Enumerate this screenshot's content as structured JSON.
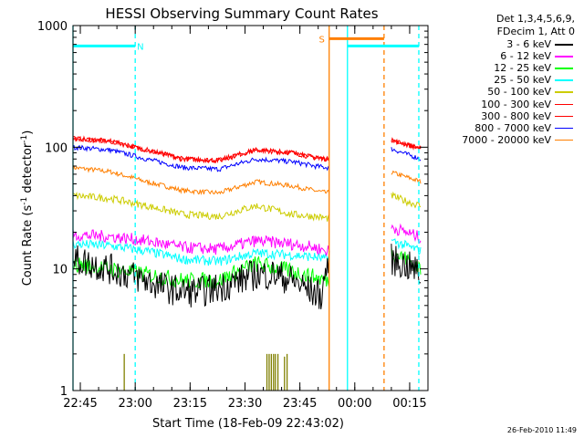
{
  "chart_data": {
    "type": "line",
    "title": "HESSI Observing Summary Count Rates",
    "xlabel": "Start Time (18-Feb-09 22:43:02)",
    "ylabel": "Count Rate (s",
    "ylabel_sup1": "-1",
    "ylabel_mid": " detector",
    "ylabel_sup2": "-1",
    "ylabel_end": ")",
    "y_scale": "log",
    "ylim": [
      1,
      1000
    ],
    "y_ticks": [
      {
        "value": 1,
        "label": "1"
      },
      {
        "value": 10,
        "label": "10"
      },
      {
        "value": 100,
        "label": "100"
      },
      {
        "value": 1000,
        "label": "1000"
      }
    ],
    "x_unit": "minutes after 22:43:02",
    "xlim": [
      0,
      97
    ],
    "x_ticks": [
      {
        "value": 2,
        "label": "22:45"
      },
      {
        "value": 17,
        "label": "23:00"
      },
      {
        "value": 32,
        "label": "23:15"
      },
      {
        "value": 47,
        "label": "23:30"
      },
      {
        "value": 62,
        "label": "23:45"
      },
      {
        "value": 77,
        "label": "00:00"
      },
      {
        "value": 92,
        "label": "00:15"
      }
    ],
    "gaps": [
      [
        70,
        87
      ]
    ],
    "series": [
      {
        "name": "3 - 6 keV",
        "color": "#000000",
        "noise": 0.13,
        "x": [
          0,
          5,
          10,
          15,
          20,
          25,
          30,
          35,
          40,
          45,
          50,
          55,
          60,
          65,
          68,
          69.5,
          87,
          90,
          93,
          95
        ],
        "y": [
          12,
          11,
          10,
          9,
          8,
          7,
          6.5,
          6.5,
          7,
          8,
          9,
          9,
          8,
          6.5,
          6,
          11,
          12,
          11,
          10,
          9
        ]
      },
      {
        "name": "6 - 12 keV",
        "color": "#ff00ff",
        "noise": 0.05,
        "x": [
          0,
          10,
          20,
          30,
          40,
          50,
          60,
          66,
          69.5,
          87,
          91,
          95
        ],
        "y": [
          19,
          18.5,
          17,
          15,
          14.5,
          17,
          16,
          15,
          14,
          22,
          20,
          18
        ]
      },
      {
        "name": "12 - 25 keV",
        "color": "#00ff00",
        "noise": 0.07,
        "x": [
          0,
          10,
          20,
          30,
          40,
          50,
          60,
          66,
          69.5,
          87,
          91,
          95
        ],
        "y": [
          11,
          10,
          9,
          8,
          8,
          11,
          9.5,
          8.5,
          8,
          14,
          12,
          10
        ]
      },
      {
        "name": "25 - 50 keV",
        "color": "#00ffff",
        "noise": 0.04,
        "x": [
          0,
          10,
          20,
          30,
          40,
          50,
          60,
          66,
          69.5,
          87,
          91,
          95
        ],
        "y": [
          16,
          15.5,
          14,
          12,
          11.5,
          13.5,
          13,
          12.5,
          12,
          17,
          15.5,
          14
        ]
      },
      {
        "name": "50 - 100 keV",
        "color": "#cccc00",
        "noise": 0.03,
        "x": [
          0,
          10,
          20,
          30,
          40,
          50,
          60,
          66,
          69.5,
          87,
          91,
          95
        ],
        "y": [
          40,
          38,
          33,
          28,
          27,
          33,
          28,
          27,
          26,
          40,
          36,
          33
        ]
      },
      {
        "name": "100 - 300 keV",
        "color": "#ff0000",
        "noise": 0.02,
        "x": [
          0,
          10,
          20,
          30,
          40,
          50,
          60,
          66,
          69.5,
          87,
          91,
          95
        ],
        "y": [
          118,
          112,
          95,
          80,
          78,
          95,
          90,
          82,
          80,
          115,
          105,
          98
        ]
      },
      {
        "name": "300 - 800 keV",
        "color": "#ff0000",
        "noise": 0.02,
        "x": [
          0,
          10,
          20,
          30,
          40,
          50,
          60,
          66,
          69.5,
          87,
          91,
          95
        ],
        "y": [
          118,
          112,
          95,
          80,
          78,
          95,
          90,
          82,
          80,
          115,
          105,
          98
        ]
      },
      {
        "name": "800 - 7000 keV",
        "color": "#0000ff",
        "noise": 0.02,
        "x": [
          0,
          10,
          20,
          30,
          40,
          50,
          60,
          66,
          69.5,
          87,
          91,
          95
        ],
        "y": [
          100,
          95,
          80,
          68,
          66,
          80,
          76,
          70,
          68,
          97,
          88,
          80
        ]
      },
      {
        "name": "7000 - 20000 keV",
        "color": "#ff7f00",
        "noise": 0.02,
        "x": [
          0,
          10,
          20,
          30,
          40,
          50,
          60,
          66,
          69.5,
          87,
          91,
          95
        ],
        "y": [
          68,
          63,
          52,
          44,
          42,
          52,
          48,
          44,
          42,
          62,
          57,
          52
        ]
      }
    ],
    "spikes": {
      "color": "#808000",
      "bars": [
        {
          "x": 14,
          "y": 2.0
        },
        {
          "x": 53,
          "y": 2.0
        },
        {
          "x": 53.6,
          "y": 2.0
        },
        {
          "x": 54.2,
          "y": 2.0
        },
        {
          "x": 54.8,
          "y": 2.0
        },
        {
          "x": 55.3,
          "y": 2.0
        },
        {
          "x": 56.0,
          "y": 2.0
        },
        {
          "x": 57.8,
          "y": 1.9
        },
        {
          "x": 58.5,
          "y": 2.0
        }
      ]
    },
    "markers": [
      {
        "type": "solid",
        "color": "#00ffff",
        "x": 0
      },
      {
        "type": "dashed",
        "color": "#00ffff",
        "x": 17
      },
      {
        "type": "solid",
        "color": "#ff7f00",
        "x": 70
      },
      {
        "type": "solid",
        "color": "#00ffff",
        "x": 75
      },
      {
        "type": "dashed",
        "color": "#ff7f00",
        "x": 85
      },
      {
        "type": "dashed",
        "color": "#00ffff",
        "x": 94.5
      }
    ],
    "segments": [
      {
        "color": "#00ffff",
        "x0": 0,
        "x1": 17,
        "y": 680,
        "label": "N",
        "label_x": 17.5
      },
      {
        "color": "#ff7f00",
        "x0": 70,
        "x1": 85,
        "y": 780,
        "label": "S",
        "label_x": 67.2
      },
      {
        "color": "#00ffff",
        "x0": 75,
        "x1": 94.5,
        "y": 680,
        "label": "",
        "label_x": 0
      }
    ]
  },
  "legend": {
    "header_line1": "Det 1,3,4,5,6,9,",
    "header_line2": "FDecim 1, Att 0"
  },
  "footer": "26-Feb-2010 11:49"
}
